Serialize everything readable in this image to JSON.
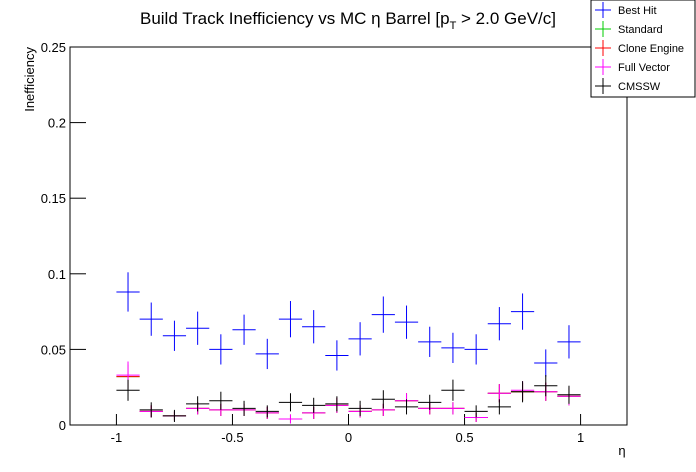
{
  "chart_data": {
    "type": "errorbar",
    "title": [
      "Build Track Inefficiency vs MC η Barrel [p",
      "T",
      " > 2.0 GeV/c]"
    ],
    "x_label": "η",
    "y_label": "Inefficiency",
    "xlim": [
      -1.2,
      1.2
    ],
    "ylim": [
      0,
      0.25
    ],
    "xticks": [
      -1,
      -0.5,
      0,
      0.5,
      1
    ],
    "yticks": [
      0,
      0.05,
      0.1,
      0.15,
      0.2,
      0.25
    ],
    "legend": "top-right",
    "x": [
      -0.95,
      -0.85,
      -0.75,
      -0.65,
      -0.55,
      -0.45,
      -0.35,
      -0.25,
      -0.15,
      -0.05,
      0.05,
      0.15,
      0.25,
      0.35,
      0.45,
      0.55,
      0.65,
      0.75,
      0.85,
      0.95
    ],
    "xerr": 0.05,
    "series": [
      {
        "name": "Best Hit",
        "color": "#0000ff",
        "values": [
          0.088,
          0.07,
          0.059,
          0.064,
          0.05,
          0.063,
          0.047,
          0.07,
          0.065,
          0.046,
          0.057,
          0.073,
          0.068,
          0.055,
          0.051,
          0.05,
          0.067,
          0.075,
          0.041,
          0.055
        ],
        "errors": [
          0.013,
          0.011,
          0.01,
          0.011,
          0.01,
          0.01,
          0.01,
          0.012,
          0.011,
          0.01,
          0.011,
          0.012,
          0.011,
          0.01,
          0.01,
          0.01,
          0.011,
          0.012,
          0.009,
          0.011
        ]
      },
      {
        "name": "Standard",
        "color": "#00cc00",
        "values": [
          0.032,
          0.009,
          0.006,
          0.011,
          0.01,
          0.01,
          0.008,
          0.004,
          0.008,
          0.013,
          0.009,
          0.01,
          0.016,
          0.011,
          0.011,
          0.005,
          0.021,
          0.022,
          0.022,
          0.019
        ],
        "errors": [
          0.008,
          0.004,
          0.003,
          0.004,
          0.004,
          0.004,
          0.004,
          0.003,
          0.004,
          0.005,
          0.004,
          0.004,
          0.005,
          0.004,
          0.004,
          0.003,
          0.006,
          0.006,
          0.006,
          0.006
        ]
      },
      {
        "name": "Clone Engine",
        "color": "#ff0000",
        "values": [
          0.032,
          0.009,
          0.006,
          0.011,
          0.01,
          0.01,
          0.008,
          0.004,
          0.008,
          0.013,
          0.009,
          0.01,
          0.016,
          0.011,
          0.011,
          0.005,
          0.021,
          0.022,
          0.022,
          0.019
        ],
        "errors": [
          0.008,
          0.004,
          0.003,
          0.004,
          0.004,
          0.004,
          0.004,
          0.003,
          0.004,
          0.005,
          0.004,
          0.004,
          0.005,
          0.004,
          0.004,
          0.003,
          0.006,
          0.006,
          0.006,
          0.006
        ]
      },
      {
        "name": "Full Vector",
        "color": "#ff00ff",
        "values": [
          0.033,
          0.009,
          0.006,
          0.011,
          0.01,
          0.01,
          0.008,
          0.004,
          0.008,
          0.013,
          0.009,
          0.01,
          0.016,
          0.011,
          0.011,
          0.005,
          0.021,
          0.023,
          0.022,
          0.019
        ],
        "errors": [
          0.009,
          0.004,
          0.003,
          0.004,
          0.004,
          0.004,
          0.004,
          0.003,
          0.004,
          0.005,
          0.004,
          0.004,
          0.005,
          0.004,
          0.004,
          0.003,
          0.006,
          0.006,
          0.006,
          0.006
        ]
      },
      {
        "name": "CMSSW",
        "color": "#000000",
        "values": [
          0.023,
          0.01,
          0.006,
          0.014,
          0.016,
          0.011,
          0.009,
          0.015,
          0.013,
          0.014,
          0.011,
          0.017,
          0.012,
          0.015,
          0.023,
          0.009,
          0.012,
          0.022,
          0.026,
          0.02
        ],
        "errors": [
          0.007,
          0.005,
          0.004,
          0.005,
          0.006,
          0.005,
          0.004,
          0.006,
          0.005,
          0.005,
          0.005,
          0.006,
          0.005,
          0.005,
          0.007,
          0.004,
          0.005,
          0.007,
          0.007,
          0.006
        ]
      }
    ]
  }
}
